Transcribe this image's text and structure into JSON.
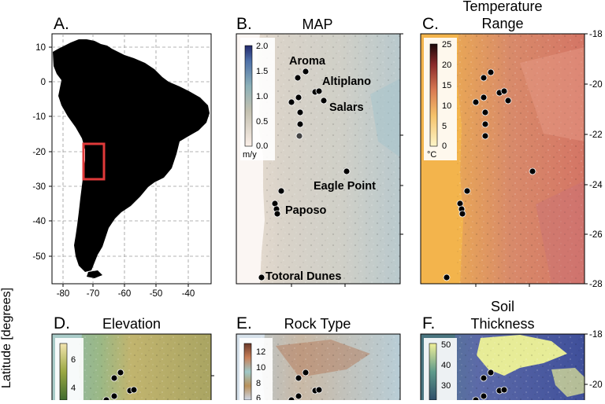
{
  "ylabel": "Latitude [degrees]",
  "panel_a": {
    "letter": "A.",
    "x_ticks": [
      "-80",
      "-70",
      "-60",
      "-50",
      "-40"
    ],
    "y_ticks": [
      "10",
      "0",
      "-10",
      "-20",
      "-30",
      "-40",
      "-50"
    ]
  },
  "panel_b": {
    "letter": "B.",
    "title": "MAP",
    "colorbar": {
      "ticks": [
        "2.0",
        "1.5",
        "1.0",
        "0.5",
        "0.0"
      ],
      "unit": "m/y"
    },
    "places": [
      "Aroma",
      "Altiplano",
      "Salars",
      "Eagle Point",
      "Paposo",
      "Totoral Dunes"
    ]
  },
  "panel_c": {
    "letter": "C.",
    "title_line1": "Temperature",
    "title_line2": "Range",
    "colorbar": {
      "ticks": [
        "25",
        "20",
        "15",
        "10",
        "5",
        "0"
      ],
      "unit": "°C"
    },
    "lat_ticks": [
      "-18",
      "-20",
      "-22",
      "-24",
      "-26",
      "-28"
    ]
  },
  "panel_d": {
    "letter": "D.",
    "title": "Elevation",
    "colorbar": {
      "ticks": [
        "6",
        "4"
      ]
    }
  },
  "panel_e": {
    "letter": "E.",
    "title": "Rock Type",
    "colorbar": {
      "ticks": [
        "12",
        "10",
        "8",
        "6"
      ]
    }
  },
  "panel_f": {
    "letter": "F.",
    "title_line1": "Soil",
    "title_line2": "Thickness",
    "colorbar": {
      "ticks": [
        "50",
        "40",
        "30"
      ]
    },
    "lat_ticks": [
      "-18",
      "-20"
    ]
  }
}
